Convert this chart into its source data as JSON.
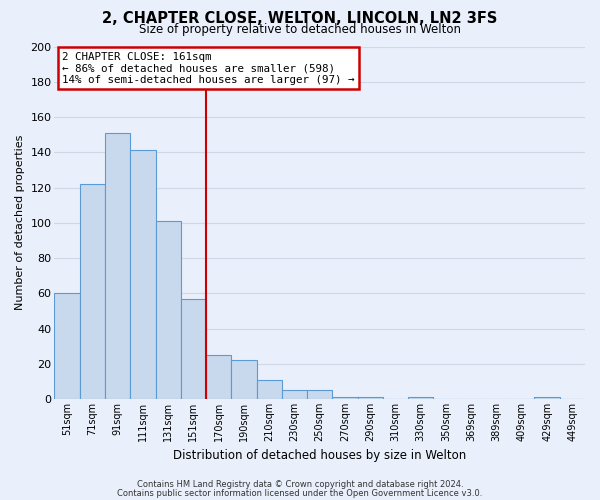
{
  "title": "2, CHAPTER CLOSE, WELTON, LINCOLN, LN2 3FS",
  "subtitle": "Size of property relative to detached houses in Welton",
  "xlabel": "Distribution of detached houses by size in Welton",
  "ylabel": "Number of detached properties",
  "bar_labels": [
    "51sqm",
    "71sqm",
    "91sqm",
    "111sqm",
    "131sqm",
    "151sqm",
    "170sqm",
    "190sqm",
    "210sqm",
    "230sqm",
    "250sqm",
    "270sqm",
    "290sqm",
    "310sqm",
    "330sqm",
    "350sqm",
    "369sqm",
    "389sqm",
    "409sqm",
    "429sqm",
    "449sqm"
  ],
  "bar_values": [
    60,
    122,
    151,
    141,
    101,
    57,
    25,
    22,
    11,
    5,
    5,
    1,
    1,
    0,
    1,
    0,
    0,
    0,
    0,
    1,
    0
  ],
  "bar_color": "#c9d9ed",
  "bar_edge_color": "#5b9bd5",
  "background_color": "#eaf0fb",
  "grid_color": "#d0d8e8",
  "vline_color": "#cc0000",
  "annotation_title": "2 CHAPTER CLOSE: 161sqm",
  "annotation_line1": "← 86% of detached houses are smaller (598)",
  "annotation_line2": "14% of semi-detached houses are larger (97) →",
  "annotation_box_color": "#ffffff",
  "annotation_box_edge": "#cc0000",
  "ylim": [
    0,
    200
  ],
  "yticks": [
    0,
    20,
    40,
    60,
    80,
    100,
    120,
    140,
    160,
    180,
    200
  ],
  "footer1": "Contains HM Land Registry data © Crown copyright and database right 2024.",
  "footer2": "Contains public sector information licensed under the Open Government Licence v3.0."
}
